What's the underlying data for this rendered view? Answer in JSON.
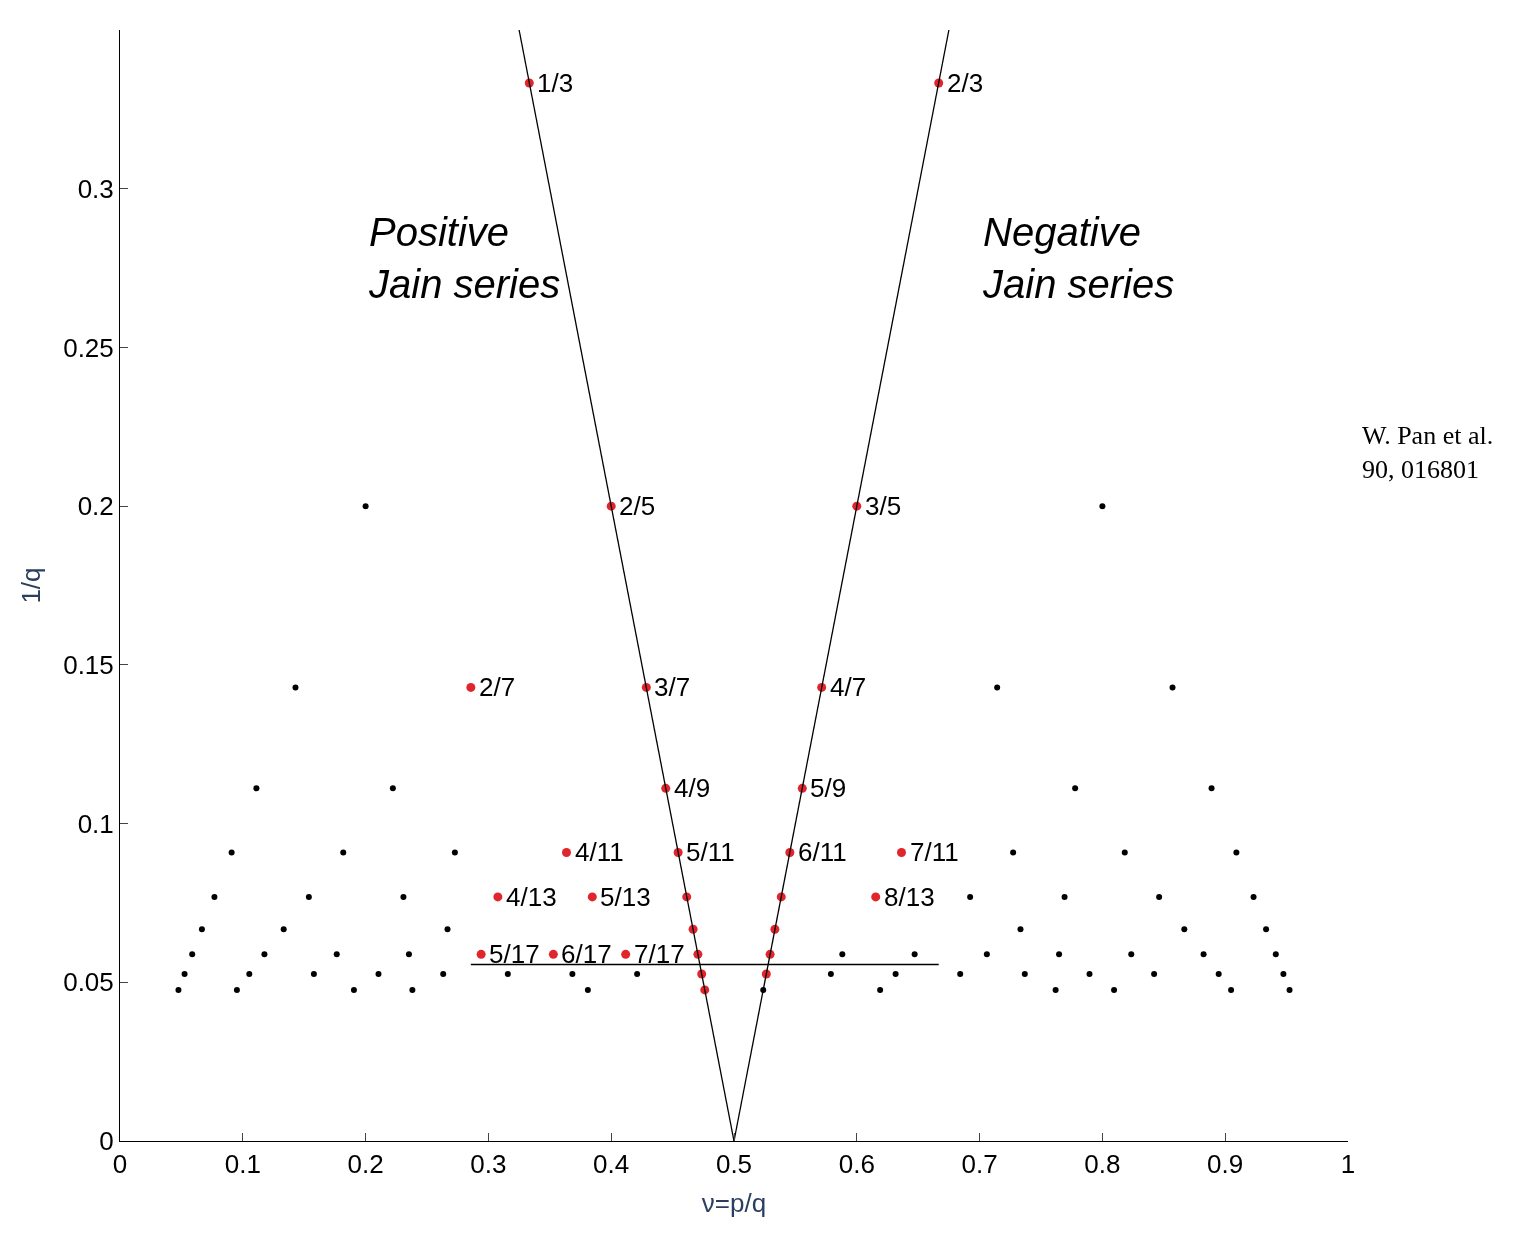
{
  "chart_data": {
    "type": "scatter",
    "xlabel": "ν=p/q",
    "ylabel": "1/q",
    "xlim": [
      0,
      1
    ],
    "xticks": [
      0,
      0.1,
      0.2,
      0.3,
      0.4,
      0.5,
      0.6,
      0.7,
      0.8,
      0.9,
      1
    ],
    "ylim": [
      0,
      0.35
    ],
    "yticks": [
      0,
      0.05,
      0.1,
      0.15,
      0.2,
      0.25,
      0.3
    ],
    "marker": "circle",
    "annotations": [
      "Positive\nJain series",
      "Negative\nJain series",
      "W. Pan et al.\n90, 016801",
      {
        "text": "1/3",
        "x": 0.3333,
        "y": 0.3333
      },
      {
        "text": "2/3",
        "x": 0.6667,
        "y": 0.3333
      },
      {
        "text": "2/5",
        "x": 0.4,
        "y": 0.2
      },
      {
        "text": "3/5",
        "x": 0.6,
        "y": 0.2
      },
      {
        "text": "2/7",
        "x": 0.2857,
        "y": 0.1429
      },
      {
        "text": "3/7",
        "x": 0.4286,
        "y": 0.1429
      },
      {
        "text": "4/7",
        "x": 0.5714,
        "y": 0.1429
      },
      {
        "text": "4/9",
        "x": 0.4444,
        "y": 0.1111
      },
      {
        "text": "5/9",
        "x": 0.5556,
        "y": 0.1111
      },
      {
        "text": "4/11",
        "x": 0.3636,
        "y": 0.0909
      },
      {
        "text": "5/11",
        "x": 0.4545,
        "y": 0.0909
      },
      {
        "text": "6/11",
        "x": 0.5455,
        "y": 0.0909
      },
      {
        "text": "7/11",
        "x": 0.6364,
        "y": 0.0909
      },
      {
        "text": "4/13",
        "x": 0.3077,
        "y": 0.0769
      },
      {
        "text": "5/13",
        "x": 0.3846,
        "y": 0.0769
      },
      {
        "text": "8/13",
        "x": 0.6154,
        "y": 0.0769
      },
      {
        "text": "5/17",
        "x": 0.2941,
        "y": 0.0588
      },
      {
        "text": "6/17",
        "x": 0.3529,
        "y": 0.0588
      },
      {
        "text": "7/17",
        "x": 0.4118,
        "y": 0.0588
      }
    ],
    "series": [
      {
        "color": "#000000",
        "x": [
          0.2,
          0.8,
          0.1429,
          0.7143,
          0.8571,
          0.1111,
          0.2222,
          0.7778,
          0.8889,
          0.0909,
          0.1818,
          0.2727,
          0.7273,
          0.8182,
          0.9091,
          0.0769,
          0.1538,
          0.2308,
          0.6923,
          0.7692,
          0.8462,
          0.9231,
          0.0667,
          0.1333,
          0.2667,
          0.7333,
          0.8667,
          0.9333,
          0.0588,
          0.1176,
          0.1765,
          0.2353,
          0.5882,
          0.6471,
          0.7059,
          0.7647,
          0.8235,
          0.8824,
          0.9412,
          0.0526,
          0.1053,
          0.1579,
          0.2105,
          0.2632,
          0.3158,
          0.3684,
          0.4211,
          0.5789,
          0.6316,
          0.6842,
          0.7368,
          0.7895,
          0.8421,
          0.8947,
          0.9474,
          0.0476,
          0.0952,
          0.1905,
          0.2381,
          0.381,
          0.5238,
          0.619,
          0.7619,
          0.8095,
          0.9048,
          0.9524
        ],
        "values": [
          0.2,
          0.2,
          0.1429,
          0.1429,
          0.1429,
          0.1111,
          0.1111,
          0.1111,
          0.1111,
          0.0909,
          0.0909,
          0.0909,
          0.0909,
          0.0909,
          0.0909,
          0.0769,
          0.0769,
          0.0769,
          0.0769,
          0.0769,
          0.0769,
          0.0769,
          0.0667,
          0.0667,
          0.0667,
          0.0667,
          0.0667,
          0.0667,
          0.0588,
          0.0588,
          0.0588,
          0.0588,
          0.0588,
          0.0588,
          0.0588,
          0.0588,
          0.0588,
          0.0588,
          0.0588,
          0.0526,
          0.0526,
          0.0526,
          0.0526,
          0.0526,
          0.0526,
          0.0526,
          0.0526,
          0.0526,
          0.0526,
          0.0526,
          0.0526,
          0.0526,
          0.0526,
          0.0526,
          0.0526,
          0.0476,
          0.0476,
          0.0476,
          0.0476,
          0.0476,
          0.0476,
          0.0476,
          0.0476,
          0.0476,
          0.0476,
          0.0476
        ]
      },
      {
        "color": "#e0262c",
        "x": [
          0.3333,
          0.6667,
          0.4,
          0.6,
          0.2857,
          0.4286,
          0.5714,
          0.4444,
          0.5556,
          0.3636,
          0.4545,
          0.5455,
          0.6364,
          0.3077,
          0.3846,
          0.4615,
          0.5385,
          0.6154,
          0.4667,
          0.5333,
          0.2941,
          0.3529,
          0.4118,
          0.4706,
          0.5294,
          0.4737,
          0.5263,
          0.4762
        ],
        "values": [
          0.3333,
          0.3333,
          0.2,
          0.2,
          0.1429,
          0.1429,
          0.1429,
          0.1111,
          0.1111,
          0.0909,
          0.0909,
          0.0909,
          0.0909,
          0.0769,
          0.0769,
          0.0769,
          0.0769,
          0.0769,
          0.0667,
          0.0667,
          0.0588,
          0.0588,
          0.0588,
          0.0588,
          0.0588,
          0.0526,
          0.0526,
          0.0476
        ]
      },
      {
        "type": "line",
        "color": "#000000",
        "marker": "none",
        "x": [
          0.5,
          0.325
        ],
        "values": [
          0,
          0.35
        ]
      },
      {
        "type": "line",
        "color": "#000000",
        "marker": "none",
        "x": [
          0.5,
          0.675
        ],
        "values": [
          0,
          0.35
        ]
      },
      {
        "type": "line",
        "color": "#000000",
        "marker": "none",
        "x": [
          0.2857,
          0.6667
        ],
        "values": [
          0.0556,
          0.0556
        ]
      }
    ]
  }
}
